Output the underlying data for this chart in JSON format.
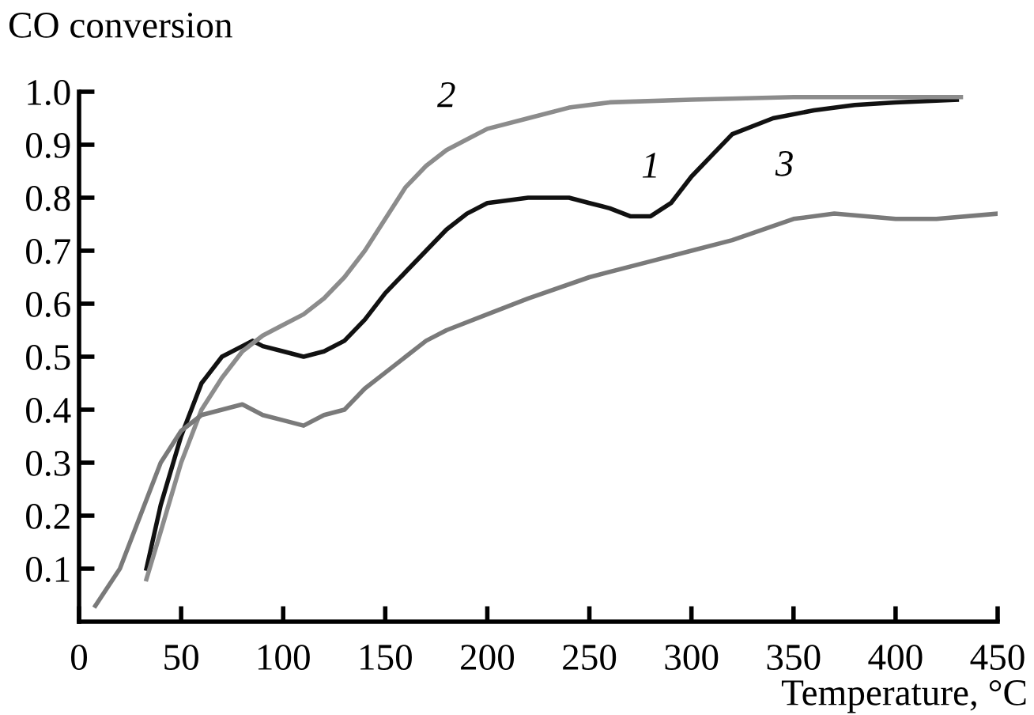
{
  "chart_data": {
    "type": "line",
    "ylabel": "CO conversion",
    "xlabel": "Temperature, °C",
    "xlim": [
      0,
      450
    ],
    "xticks": [
      0,
      50,
      100,
      150,
      200,
      250,
      300,
      350,
      400,
      450
    ],
    "ylim": [
      0,
      1.0
    ],
    "yticks": [
      {
        "value": 0.1,
        "label": "0.1"
      },
      {
        "value": 0.2,
        "label": "0.2"
      },
      {
        "value": 0.3,
        "label": "0.3"
      },
      {
        "value": 0.4,
        "label": "0.4"
      },
      {
        "value": 0.5,
        "label": "0.5"
      },
      {
        "value": 0.6,
        "label": "0.6"
      },
      {
        "value": 0.7,
        "label": "0.7"
      },
      {
        "value": 0.8,
        "label": "0.8"
      },
      {
        "value": 0.9,
        "label": "0.9"
      },
      {
        "value": 1.0,
        "label": "1.0"
      }
    ],
    "grid": false,
    "legend": false,
    "marker": "none",
    "line_style": "solid",
    "series": [
      {
        "name": "1",
        "color": "#111111",
        "x": [
          33,
          40,
          50,
          60,
          70,
          80,
          85,
          90,
          100,
          110,
          120,
          130,
          140,
          150,
          160,
          170,
          180,
          190,
          200,
          220,
          240,
          250,
          260,
          270,
          280,
          290,
          300,
          310,
          320,
          340,
          360,
          380,
          400,
          430
        ],
        "values": [
          0.1,
          0.22,
          0.35,
          0.45,
          0.5,
          0.52,
          0.53,
          0.52,
          0.51,
          0.5,
          0.51,
          0.53,
          0.57,
          0.62,
          0.66,
          0.7,
          0.74,
          0.77,
          0.79,
          0.8,
          0.8,
          0.79,
          0.78,
          0.765,
          0.765,
          0.79,
          0.84,
          0.88,
          0.92,
          0.95,
          0.965,
          0.975,
          0.98,
          0.985
        ]
      },
      {
        "name": "2",
        "color": "#8c8c8c",
        "x": [
          33,
          40,
          50,
          60,
          70,
          80,
          90,
          100,
          110,
          120,
          130,
          140,
          150,
          160,
          170,
          180,
          190,
          200,
          220,
          240,
          260,
          300,
          350,
          400,
          432
        ],
        "values": [
          0.08,
          0.17,
          0.3,
          0.4,
          0.46,
          0.51,
          0.54,
          0.56,
          0.58,
          0.61,
          0.65,
          0.7,
          0.76,
          0.82,
          0.86,
          0.89,
          0.91,
          0.93,
          0.95,
          0.97,
          0.98,
          0.985,
          0.99,
          0.99,
          0.99
        ]
      },
      {
        "name": "3",
        "color": "#7a7a7a",
        "x": [
          8,
          20,
          30,
          40,
          50,
          60,
          70,
          80,
          90,
          100,
          110,
          120,
          130,
          140,
          150,
          160,
          170,
          180,
          200,
          220,
          250,
          280,
          300,
          320,
          350,
          370,
          400,
          420,
          450
        ],
        "values": [
          0.03,
          0.1,
          0.2,
          0.3,
          0.36,
          0.39,
          0.4,
          0.41,
          0.39,
          0.38,
          0.37,
          0.39,
          0.4,
          0.44,
          0.47,
          0.5,
          0.53,
          0.55,
          0.58,
          0.61,
          0.65,
          0.68,
          0.7,
          0.72,
          0.76,
          0.77,
          0.76,
          0.76,
          0.77
        ]
      }
    ]
  }
}
